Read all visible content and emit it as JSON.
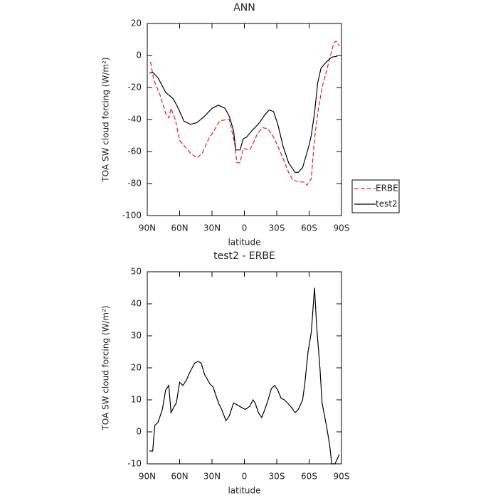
{
  "chart_data": [
    {
      "type": "line",
      "title": "ANN",
      "ylabel": "TOA SW cloud forcing (W/m²)",
      "xlabel": "latitude",
      "xlim": [
        90,
        -90
      ],
      "ylim": [
        -100,
        20
      ],
      "xticks": [
        {
          "value": 90,
          "label": "90N"
        },
        {
          "value": 60,
          "label": "60N"
        },
        {
          "value": 30,
          "label": "30N"
        },
        0,
        {
          "value": -30,
          "label": "30S"
        },
        {
          "value": -60,
          "label": "60S"
        },
        {
          "value": -90,
          "label": "90S"
        }
      ],
      "yticks": [
        -100,
        -80,
        -60,
        -40,
        -20,
        0,
        20
      ],
      "legend": "right",
      "series": [
        {
          "name": "ERBE",
          "color": "#e8191b",
          "linestyle": "dashed",
          "x": [
            87,
            84,
            78,
            73,
            70,
            68,
            64,
            60,
            55,
            50,
            44,
            39,
            33,
            29,
            23,
            17,
            14,
            9,
            7,
            4,
            1,
            -5,
            -8,
            -12,
            -17,
            -22,
            -28,
            -35,
            -41,
            -45,
            -52,
            -55,
            -58,
            -62,
            -65,
            -68,
            -72,
            -76,
            -79,
            -83,
            -85,
            -88
          ],
          "values": [
            -4,
            -15,
            -25,
            -36,
            -39,
            -33,
            -40,
            -53,
            -57,
            -61,
            -64,
            -61,
            -52,
            -48,
            -41,
            -40,
            -40,
            -55,
            -67,
            -67,
            -58,
            -59,
            -55,
            -49,
            -45,
            -46,
            -52,
            -63,
            -73,
            -78,
            -79,
            -79,
            -81,
            -77,
            -52,
            -36,
            -20,
            -10,
            -2,
            8,
            9,
            6
          ]
        },
        {
          "name": "test2",
          "color": "#000000",
          "linestyle": "solid",
          "x": [
            88,
            85,
            80,
            73,
            66,
            62,
            56,
            50,
            44,
            37,
            30,
            24,
            18,
            14,
            10,
            8,
            4,
            1,
            -2,
            -7,
            -14,
            -19,
            -23,
            -27,
            -31,
            -36,
            -41,
            -47,
            -50,
            -54,
            -60,
            -62,
            -65,
            -68,
            -71,
            -76,
            -81,
            -86
          ],
          "values": [
            -11,
            -10.5,
            -14,
            -23,
            -27,
            -32,
            -41,
            -43,
            -42,
            -38,
            -33,
            -31,
            -33,
            -38,
            -47,
            -59,
            -59,
            -52,
            -51,
            -47,
            -42,
            -37,
            -34,
            -35,
            -43,
            -57,
            -67,
            -73,
            -73,
            -70,
            -56,
            -50,
            -36,
            -17,
            -8,
            -4,
            -1,
            -0.5
          ]
        }
      ]
    },
    {
      "type": "line",
      "title": "test2 - ERBE",
      "ylabel": "TOA SW cloud forcing (W/m²)",
      "xlabel": "latitude",
      "xlim": [
        90,
        -90
      ],
      "ylim": [
        -10,
        50
      ],
      "xticks": [
        {
          "value": 90,
          "label": "90N"
        },
        {
          "value": 60,
          "label": "60N"
        },
        {
          "value": 30,
          "label": "30N"
        },
        0,
        {
          "value": -30,
          "label": "30S"
        },
        {
          "value": -60,
          "label": "60S"
        },
        {
          "value": -90,
          "label": "90S"
        }
      ],
      "yticks": [
        -10,
        0,
        10,
        20,
        30,
        40,
        50
      ],
      "color": "#000000",
      "x": [
        88,
        85,
        83,
        80,
        76,
        73,
        70,
        68,
        65,
        63,
        60,
        57,
        54,
        50,
        46,
        43,
        40,
        37,
        32,
        29,
        24,
        21,
        17,
        14,
        10,
        7,
        2,
        -1,
        -5,
        -8,
        -10,
        -13,
        -16,
        -19,
        -22,
        -25,
        -28,
        -31,
        -34,
        -37,
        -40,
        -44,
        -47,
        -50,
        -54,
        -56,
        -59,
        -62,
        -65,
        -67,
        -70,
        -72,
        -76,
        -79,
        -81,
        -84,
        -88
      ],
      "values": [
        -6,
        -6,
        2,
        3,
        7,
        13,
        14.5,
        6,
        8,
        9,
        15.5,
        14.5,
        16,
        19,
        21.5,
        22,
        21.5,
        18,
        15,
        14,
        9,
        7,
        3.5,
        5,
        9,
        8.5,
        7.5,
        7,
        8,
        10,
        9,
        6,
        4.5,
        7,
        10,
        13.5,
        14.5,
        13,
        10.5,
        10,
        9,
        7.5,
        6,
        7,
        10,
        15,
        25,
        31,
        45,
        33,
        20,
        9,
        2,
        -4,
        -10,
        -10,
        -7
      ]
    }
  ]
}
